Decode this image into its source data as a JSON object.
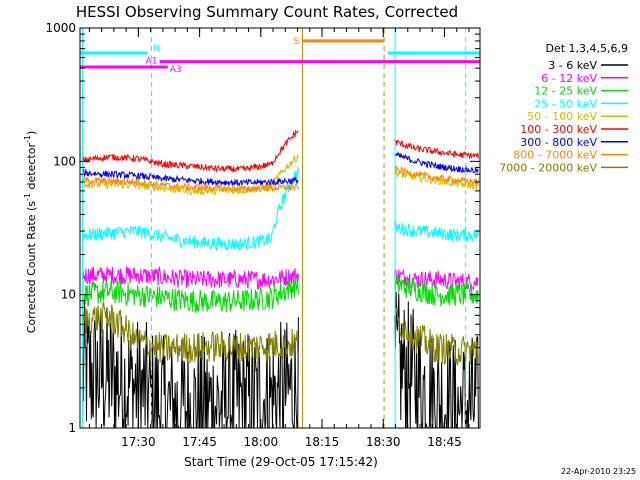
{
  "chart_data": {
    "type": "line",
    "title": "HESSI Observing Summary Count Rates, Corrected",
    "xlabel": "Start Time (29-Oct-05 17:15:42)",
    "ylabel_main": "Corrected Count Rate (s",
    "ylabel_sup1": "-1",
    "ylabel_mid": " detector",
    "ylabel_sup2": "-1",
    "ylabel_end": ")",
    "footer": "22-Apr-2010 23:25",
    "legend_title": "Det 1,3,4,5,6,9",
    "y_scale": "log",
    "ylim": [
      1,
      1000
    ],
    "y_ticks": [
      1,
      10,
      100,
      1000
    ],
    "y_tick_labels": [
      "1",
      "10",
      "100",
      "1000"
    ],
    "xlim_minutes": [
      0,
      98
    ],
    "x_tick_labels": [
      "17:30",
      "17:45",
      "18:00",
      "18:15",
      "18:30",
      "18:45"
    ],
    "x_tick_minutes": [
      14.3,
      29.3,
      44.3,
      59.3,
      74.3,
      89.3
    ],
    "data_gap_minutes": [
      54.5,
      76.5
    ],
    "series": [
      {
        "name": "3 - 6 keV",
        "color": "#000000",
        "pre": [
          2.6,
          2.4,
          2.0,
          1.4,
          1.4,
          1.5,
          1.6,
          1.7,
          2.0
        ],
        "post": [
          3.2,
          2.2,
          1.6,
          1.4,
          1.5
        ],
        "noise": 0.55
      },
      {
        "name": "6 - 12 keV",
        "color": "#ff00ff",
        "pre": [
          14,
          14,
          14,
          13.5,
          13,
          13,
          13,
          13,
          14
        ],
        "post": [
          14,
          13,
          13,
          12.5,
          12.5
        ],
        "noise": 0.07
      },
      {
        "name": "12 - 25 keV",
        "color": "#00dd00",
        "pre": [
          10,
          10.5,
          10,
          9.5,
          9,
          8.8,
          9,
          9.5,
          12
        ],
        "post": [
          12,
          11,
          10,
          10,
          10
        ],
        "noise": 0.09
      },
      {
        "name": "25 - 50 keV",
        "color": "#00ffff",
        "pre": [
          28,
          29,
          30,
          27,
          25,
          24,
          24,
          26,
          85
        ],
        "post": [
          32,
          30,
          29,
          28,
          28
        ],
        "noise": 0.05
      },
      {
        "name": "50 - 100 keV",
        "color": "#ddbb00",
        "pre": [
          68,
          67,
          66,
          63,
          60,
          60,
          61,
          65,
          110
        ],
        "post": [
          82,
          76,
          72,
          68,
          65
        ],
        "noise": 0.03
      },
      {
        "name": "100 - 300 keV",
        "color": "#ff0000",
        "pre": [
          102,
          108,
          105,
          95,
          92,
          88,
          87,
          95,
          170
        ],
        "post": [
          140,
          125,
          118,
          112,
          110
        ],
        "noise": 0.025
      },
      {
        "name": "300 - 800 keV",
        "color": "#0000ff",
        "pre": [
          82,
          80,
          78,
          74,
          72,
          70,
          69,
          70,
          72
        ],
        "post": [
          112,
          100,
          92,
          88,
          85
        ],
        "noise": 0.025
      },
      {
        "name": "800 - 7000 keV",
        "color": "#ff8800",
        "pre": [
          72,
          71,
          70,
          66,
          64,
          63,
          62,
          63,
          64
        ],
        "post": [
          88,
          80,
          75,
          72,
          70
        ],
        "noise": 0.025
      },
      {
        "name": "7000 - 20000 keV",
        "color": "#808000",
        "pre": [
          6.5,
          6.8,
          4.5,
          3.9,
          4.0,
          4.1,
          4.0,
          4.2,
          4.3
        ],
        "post": [
          6.5,
          4.8,
          4.0,
          3.8,
          3.8
        ],
        "noise": 0.12
      }
    ],
    "annotations": {
      "night": {
        "label": "N",
        "color": "#00ffff",
        "segments": [
          [
            0,
            16.5
          ],
          [
            75.5,
            98
          ]
        ],
        "level": 650
      },
      "saa": {
        "label": "S",
        "color": "#ff8800",
        "segments": [
          [
            54.5,
            74.5
          ]
        ],
        "level": 800
      },
      "attenuator": {
        "label_a1": "A1",
        "label_a3": "A3",
        "color": "#ff00ff",
        "a1_from": 19.5,
        "a1_level": 560,
        "a3_to": 21.5,
        "a3_level": 510
      },
      "vlines": [
        {
          "minute": 0.6,
          "color": "#00ffff",
          "style": "solid"
        },
        {
          "minute": 17.5,
          "color": "#00ffff",
          "style": "dashed"
        },
        {
          "minute": 54.5,
          "color": "#cc8800",
          "style": "solid"
        },
        {
          "minute": 74.5,
          "color": "#cc8800",
          "style": "dashed"
        },
        {
          "minute": 77.2,
          "color": "#00ffff",
          "style": "solid"
        },
        {
          "minute": 94.5,
          "color": "#00ffff",
          "style": "dashed"
        }
      ]
    }
  }
}
